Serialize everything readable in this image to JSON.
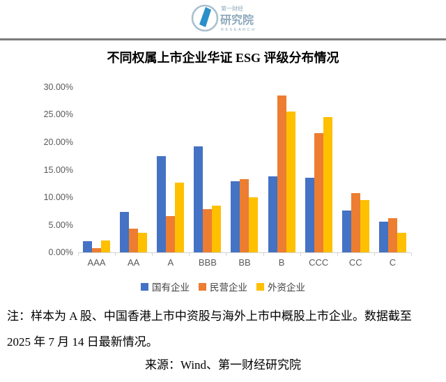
{
  "logo": {
    "name1": "第一财经",
    "name2": "研究院",
    "name3": "RESEARCH"
  },
  "title": "不同权属上市企业华证 ESG 评级分布情况",
  "chart_data": {
    "type": "bar",
    "title": "不同权属上市企业华证 ESG 评级分布情况",
    "categories": [
      "AAA",
      "AA",
      "A",
      "BBB",
      "BB",
      "B",
      "CCC",
      "CC",
      "C"
    ],
    "series": [
      {
        "name": "国有企业",
        "color": "#4472C4",
        "values": [
          2.0,
          7.4,
          17.5,
          19.2,
          12.9,
          13.8,
          13.5,
          7.6,
          5.6
        ]
      },
      {
        "name": "民营企业",
        "color": "#ED7D31",
        "values": [
          0.8,
          4.3,
          6.6,
          7.9,
          13.3,
          28.5,
          21.7,
          10.8,
          6.2
        ]
      },
      {
        "name": "外资企业",
        "color": "#FFC000",
        "values": [
          2.1,
          3.5,
          12.7,
          8.5,
          10.0,
          25.6,
          24.5,
          9.5,
          3.5
        ]
      }
    ],
    "xlabel": "",
    "ylabel": "",
    "ylim": [
      0,
      30
    ],
    "ytick_step": 5,
    "ytick_labels": [
      "30.00%",
      "25.00%",
      "20.00%",
      "15.00%",
      "10.00%",
      "5.00%",
      "0.00%"
    ],
    "grid": false,
    "legend_position": "bottom"
  },
  "note": {
    "line1": "注：样本为 A 股、中国香港上市中资股与海外上市中概股上市企业。数据截至",
    "line2": "2025 年 7 月 14 日最新情况。"
  },
  "source": "来源：Wind、第一财经研究院"
}
